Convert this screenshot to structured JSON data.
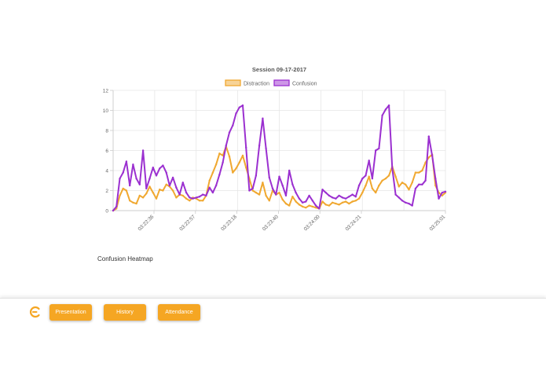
{
  "chart_data": {
    "type": "line",
    "title": "Session 09-17-2017",
    "x_tick_labels": [
      "03:22:36",
      "03:22:57",
      "03:23:18",
      "03:23:40",
      "03:24:00",
      "03:24:21",
      "03:25:01"
    ],
    "ylim": [
      0,
      12
    ],
    "y_ticks": [
      0,
      2,
      4,
      6,
      8,
      10,
      12
    ],
    "legend_position": "top-center",
    "grid": true,
    "series": [
      {
        "name": "Distraction",
        "color": "#f0a830",
        "points": [
          [
            0,
            0
          ],
          [
            1,
            0.2
          ],
          [
            2,
            1.5
          ],
          [
            3,
            2.2
          ],
          [
            4,
            2
          ],
          [
            5,
            1
          ],
          [
            6,
            0.8
          ],
          [
            7,
            0.7
          ],
          [
            8,
            1.5
          ],
          [
            9,
            1.3
          ],
          [
            10,
            1.7
          ],
          [
            11,
            2.4
          ],
          [
            12,
            1.8
          ],
          [
            13,
            1.2
          ],
          [
            14,
            2.1
          ],
          [
            15,
            2
          ],
          [
            16,
            2.6
          ],
          [
            17,
            2.4
          ],
          [
            18,
            2
          ],
          [
            19,
            1.3
          ],
          [
            20,
            1.6
          ],
          [
            21,
            1.5
          ],
          [
            22,
            1.2
          ],
          [
            23,
            1
          ],
          [
            24,
            1.3
          ],
          [
            25,
            1.2
          ],
          [
            26,
            1
          ],
          [
            27,
            1
          ],
          [
            28,
            1.5
          ],
          [
            29,
            3
          ],
          [
            30,
            3.8
          ],
          [
            31,
            4.6
          ],
          [
            32,
            5.7
          ],
          [
            33,
            5.5
          ],
          [
            34,
            6.4
          ],
          [
            35,
            5.4
          ],
          [
            36,
            3.8
          ],
          [
            37,
            4.2
          ],
          [
            38,
            4.8
          ],
          [
            39,
            5.5
          ],
          [
            40,
            4.3
          ],
          [
            41,
            3.2
          ],
          [
            42,
            2
          ],
          [
            43,
            1.8
          ],
          [
            44,
            1.6
          ],
          [
            45,
            2.8
          ],
          [
            46,
            1.5
          ],
          [
            47,
            1
          ],
          [
            48,
            2
          ],
          [
            49,
            1.6
          ],
          [
            50,
            1.8
          ],
          [
            51,
            1.1
          ],
          [
            52,
            0.7
          ],
          [
            53,
            0.5
          ],
          [
            54,
            1.4
          ],
          [
            55,
            0.9
          ],
          [
            56,
            0.6
          ],
          [
            57,
            0.4
          ],
          [
            58,
            0.3
          ],
          [
            59,
            0.5
          ],
          [
            60,
            0.4
          ],
          [
            61,
            0.3
          ],
          [
            62,
            0.2
          ],
          [
            63,
            0.9
          ],
          [
            64,
            0.6
          ],
          [
            65,
            0.5
          ],
          [
            66,
            0.8
          ],
          [
            67,
            0.7
          ],
          [
            68,
            0.6
          ],
          [
            69,
            0.8
          ],
          [
            70,
            0.9
          ],
          [
            71,
            0.7
          ],
          [
            72,
            0.9
          ],
          [
            73,
            1
          ],
          [
            74,
            1.2
          ],
          [
            75,
            1.8
          ],
          [
            76,
            2.5
          ],
          [
            77,
            3.4
          ],
          [
            78,
            2.2
          ],
          [
            79,
            1.8
          ],
          [
            80,
            2.5
          ],
          [
            81,
            3
          ],
          [
            82,
            3.2
          ],
          [
            83,
            3.5
          ],
          [
            84,
            4.4
          ],
          [
            85,
            3.4
          ],
          [
            86,
            2.4
          ],
          [
            87,
            2.8
          ],
          [
            88,
            2.6
          ],
          [
            89,
            2.1
          ],
          [
            90,
            2.8
          ],
          [
            91,
            3.8
          ],
          [
            92,
            3.8
          ],
          [
            93,
            4
          ],
          [
            94,
            4.8
          ],
          [
            95,
            5.3
          ],
          [
            96,
            5.6
          ],
          [
            97,
            2.5
          ],
          [
            98,
            1.8
          ],
          [
            99,
            1.5
          ],
          [
            100,
            1.8
          ]
        ]
      },
      {
        "name": "Confusion",
        "color": "#9b30d0",
        "points": [
          [
            0,
            0
          ],
          [
            1,
            0.4
          ],
          [
            2,
            3.2
          ],
          [
            3,
            3.8
          ],
          [
            4,
            4.9
          ],
          [
            5,
            2.5
          ],
          [
            6,
            4.6
          ],
          [
            7,
            3.2
          ],
          [
            8,
            2.6
          ],
          [
            9,
            6
          ],
          [
            10,
            2.2
          ],
          [
            11,
            3.2
          ],
          [
            12,
            4.3
          ],
          [
            13,
            3.5
          ],
          [
            14,
            4.2
          ],
          [
            15,
            4.5
          ],
          [
            16,
            3.8
          ],
          [
            17,
            2.5
          ],
          [
            18,
            3.3
          ],
          [
            19,
            2.3
          ],
          [
            20,
            1.6
          ],
          [
            21,
            2.8
          ],
          [
            22,
            1.8
          ],
          [
            23,
            1.3
          ],
          [
            24,
            1.2
          ],
          [
            25,
            1.3
          ],
          [
            26,
            1.4
          ],
          [
            27,
            1.6
          ],
          [
            28,
            1.5
          ],
          [
            29,
            2.3
          ],
          [
            30,
            1.8
          ],
          [
            31,
            2.5
          ],
          [
            32,
            3.6
          ],
          [
            33,
            4.8
          ],
          [
            34,
            6.5
          ],
          [
            35,
            7.8
          ],
          [
            36,
            8.5
          ],
          [
            37,
            9.7
          ],
          [
            38,
            10.3
          ],
          [
            39,
            10.5
          ],
          [
            40,
            6.3
          ],
          [
            41,
            2
          ],
          [
            42,
            2.2
          ],
          [
            43,
            3.5
          ],
          [
            44,
            6.5
          ],
          [
            45,
            9.2
          ],
          [
            46,
            6.2
          ],
          [
            47,
            3.3
          ],
          [
            48,
            2.2
          ],
          [
            49,
            1.6
          ],
          [
            50,
            3.4
          ],
          [
            51,
            2.5
          ],
          [
            52,
            1.5
          ],
          [
            53,
            4
          ],
          [
            54,
            2.6
          ],
          [
            55,
            1.8
          ],
          [
            56,
            1.2
          ],
          [
            57,
            0.8
          ],
          [
            58,
            0.9
          ],
          [
            59,
            1.5
          ],
          [
            60,
            1
          ],
          [
            61,
            0.5
          ],
          [
            62,
            0.2
          ],
          [
            63,
            2.1
          ],
          [
            64,
            1.8
          ],
          [
            65,
            1.5
          ],
          [
            66,
            1.3
          ],
          [
            67,
            1.2
          ],
          [
            68,
            1.5
          ],
          [
            69,
            1.3
          ],
          [
            70,
            1.2
          ],
          [
            71,
            1.4
          ],
          [
            72,
            1.6
          ],
          [
            73,
            1.4
          ],
          [
            74,
            2.5
          ],
          [
            75,
            3.2
          ],
          [
            76,
            3.5
          ],
          [
            77,
            5
          ],
          [
            78,
            3.2
          ],
          [
            79,
            6
          ],
          [
            80,
            6.2
          ],
          [
            81,
            9.5
          ],
          [
            82,
            10.1
          ],
          [
            83,
            10.5
          ],
          [
            84,
            4.2
          ],
          [
            85,
            1.6
          ],
          [
            86,
            1.3
          ],
          [
            87,
            1
          ],
          [
            88,
            0.8
          ],
          [
            89,
            0.7
          ],
          [
            90,
            0.5
          ],
          [
            91,
            2.2
          ],
          [
            92,
            2.6
          ],
          [
            93,
            2.6
          ],
          [
            94,
            3
          ],
          [
            95,
            7.4
          ],
          [
            96,
            5.5
          ],
          [
            97,
            3.2
          ],
          [
            98,
            1.2
          ],
          [
            99,
            1.8
          ],
          [
            100,
            1.9
          ]
        ]
      }
    ]
  },
  "heatmap_label": "Confusion Heatmap",
  "footer": {
    "buttons": [
      "Presentation",
      "History",
      "Attendance"
    ],
    "accent_color": "#f5a623"
  }
}
